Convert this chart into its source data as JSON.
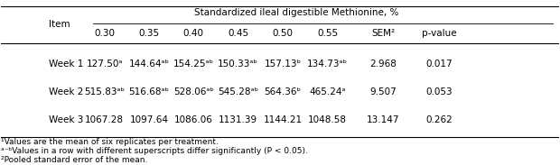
{
  "header_main": "Standardized ileal digestible Methionine, %",
  "col_headers": [
    "Item",
    "0.30",
    "0.35",
    "0.40",
    "0.45",
    "0.50",
    "0.55",
    "SEM²",
    "p-value"
  ],
  "rows": [
    {
      "label": "Week 1",
      "values": [
        "127.50ᵃ",
        "144.64ᵃᵇ",
        "154.25ᵃᵇ",
        "150.33ᵃᵇ",
        "157.13ᵇ",
        "134.73ᵃᵇ",
        "2.968",
        "0.017"
      ]
    },
    {
      "label": "Week 2",
      "values": [
        "515.83ᵃᵇ",
        "516.68ᵃᵇ",
        "528.06ᵃᵇ",
        "545.28ᵃᵇ",
        "564.36ᵇ",
        "465.24ᵃ",
        "9.507",
        "0.053"
      ]
    },
    {
      "label": "Week 3",
      "values": [
        "1067.28",
        "1097.64",
        "1086.06",
        "1131.39",
        "1144.21",
        "1048.58",
        "13.147",
        "0.262"
      ]
    }
  ],
  "footnotes": [
    "¹Values are the mean of six replicates per treatment.",
    "ᵃ⁻ᵇValues in a row with different superscripts differ significantly (P < 0.05).",
    "²Pooled standard error of the mean."
  ],
  "bg_color": "#f0f0f0",
  "header_bg": "#d0d0d0",
  "font_size": 7.5,
  "footnote_font_size": 6.5
}
